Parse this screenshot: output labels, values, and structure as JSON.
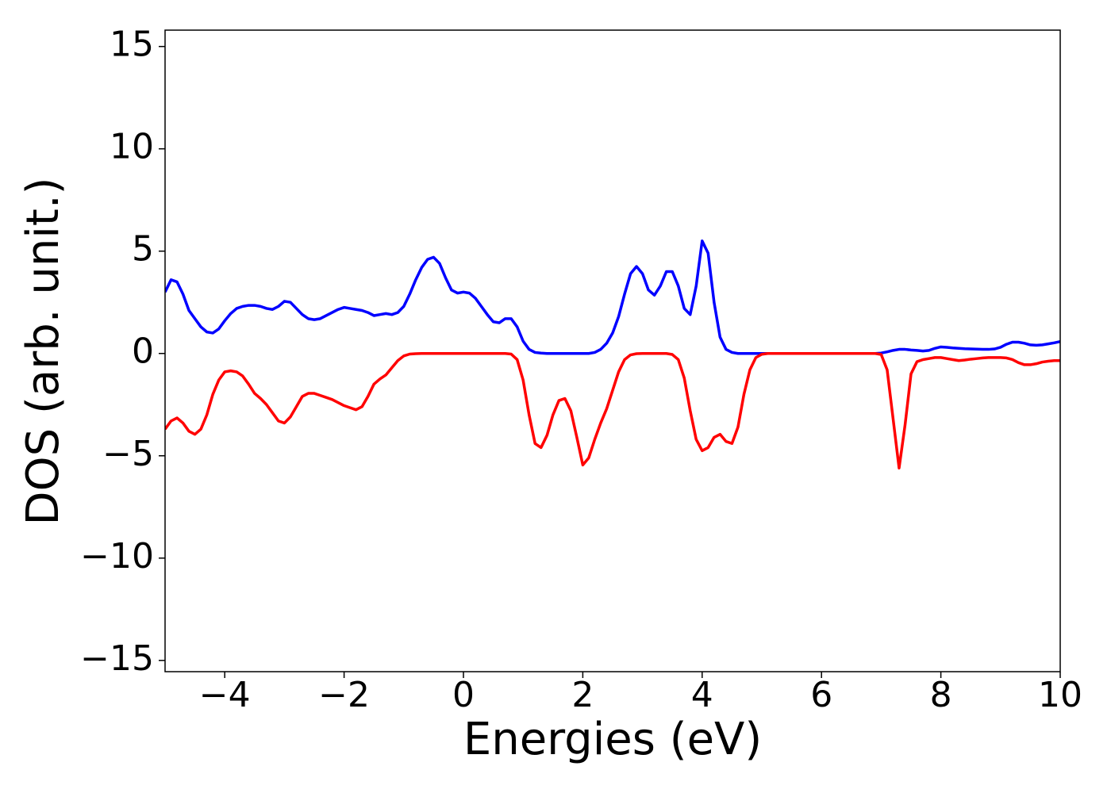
{
  "chart_data": {
    "type": "line",
    "xlabel": "Energies (eV)",
    "ylabel": "DOS (arb. unit.)",
    "xlim": [
      -5,
      10
    ],
    "ylim": [
      -15.55,
      15.8
    ],
    "xticks": [
      {
        "value": -4,
        "label": "−4"
      },
      {
        "value": -2,
        "label": "−2"
      },
      0,
      2,
      4,
      6,
      8,
      10
    ],
    "yticks": [
      {
        "value": -15,
        "label": "−15"
      },
      {
        "value": -10,
        "label": "−10"
      },
      {
        "value": -5,
        "label": "−5"
      },
      0,
      5,
      10,
      15
    ],
    "grid": false,
    "x": [
      -5.0,
      -4.9,
      -4.8,
      -4.7,
      -4.6,
      -4.5,
      -4.4,
      -4.3,
      -4.2,
      -4.1,
      -4.0,
      -3.9,
      -3.8,
      -3.7,
      -3.6,
      -3.5,
      -3.4,
      -3.3,
      -3.2,
      -3.1,
      -3.0,
      -2.9,
      -2.8,
      -2.7,
      -2.6,
      -2.5,
      -2.4,
      -2.3,
      -2.2,
      -2.1,
      -2.0,
      -1.9,
      -1.8,
      -1.7,
      -1.6,
      -1.5,
      -1.4,
      -1.3,
      -1.2,
      -1.1,
      -1.0,
      -0.9,
      -0.8,
      -0.7,
      -0.6,
      -0.5,
      -0.4,
      -0.3,
      -0.2,
      -0.1,
      0.0,
      0.1,
      0.2,
      0.3,
      0.4,
      0.5,
      0.6,
      0.7,
      0.8,
      0.9,
      1.0,
      1.1,
      1.2,
      1.3,
      1.4,
      1.5,
      1.6,
      1.7,
      1.8,
      1.9,
      2.0,
      2.1,
      2.2,
      2.3,
      2.4,
      2.5,
      2.6,
      2.7,
      2.8,
      2.9,
      3.0,
      3.1,
      3.2,
      3.3,
      3.4,
      3.5,
      3.6,
      3.7,
      3.8,
      3.9,
      4.0,
      4.1,
      4.2,
      4.3,
      4.4,
      4.5,
      4.6,
      4.7,
      4.8,
      4.9,
      5.0,
      5.1,
      5.2,
      5.3,
      5.4,
      5.5,
      5.6,
      5.7,
      5.8,
      5.9,
      6.0,
      6.1,
      6.2,
      6.3,
      6.4,
      6.5,
      6.6,
      6.7,
      6.8,
      6.9,
      7.0,
      7.1,
      7.2,
      7.3,
      7.4,
      7.5,
      7.6,
      7.7,
      7.8,
      7.9,
      8.0,
      8.1,
      8.2,
      8.3,
      8.4,
      8.5,
      8.6,
      8.7,
      8.8,
      8.9,
      9.0,
      9.1,
      9.2,
      9.3,
      9.4,
      9.5,
      9.6,
      9.7,
      9.8,
      9.9,
      10.0
    ],
    "series": [
      {
        "color": "#0000ff",
        "values": [
          3.0,
          3.6,
          3.5,
          2.9,
          2.1,
          1.7,
          1.3,
          1.05,
          1.0,
          1.2,
          1.6,
          1.95,
          2.2,
          2.3,
          2.35,
          2.35,
          2.3,
          2.2,
          2.15,
          2.3,
          2.55,
          2.5,
          2.2,
          1.9,
          1.7,
          1.65,
          1.7,
          1.85,
          2.0,
          2.15,
          2.25,
          2.2,
          2.15,
          2.1,
          2.0,
          1.85,
          1.9,
          1.95,
          1.9,
          2.0,
          2.3,
          2.9,
          3.6,
          4.2,
          4.6,
          4.7,
          4.4,
          3.7,
          3.1,
          2.95,
          3.0,
          2.95,
          2.7,
          2.3,
          1.9,
          1.55,
          1.5,
          1.7,
          1.7,
          1.3,
          0.6,
          0.2,
          0.05,
          0.02,
          0,
          0,
          0,
          0,
          0,
          0,
          0,
          0,
          0.05,
          0.2,
          0.5,
          1.0,
          1.8,
          2.9,
          3.9,
          4.25,
          3.9,
          3.1,
          2.85,
          3.3,
          4.0,
          4.0,
          3.3,
          2.2,
          1.9,
          3.3,
          5.5,
          4.9,
          2.5,
          0.8,
          0.2,
          0.05,
          0,
          0,
          0,
          0,
          0,
          0,
          0,
          0,
          0,
          0,
          0,
          0,
          0,
          0,
          0,
          0,
          0,
          0,
          0,
          0,
          0,
          0,
          0,
          0,
          0.02,
          0.08,
          0.15,
          0.2,
          0.2,
          0.17,
          0.15,
          0.12,
          0.15,
          0.25,
          0.32,
          0.3,
          0.27,
          0.25,
          0.23,
          0.22,
          0.21,
          0.2,
          0.2,
          0.22,
          0.3,
          0.45,
          0.55,
          0.55,
          0.5,
          0.42,
          0.4,
          0.42,
          0.47,
          0.52,
          0.58
        ]
      },
      {
        "color": "#ff0000",
        "values": [
          -3.7,
          -3.3,
          -3.15,
          -3.4,
          -3.8,
          -3.95,
          -3.7,
          -3.0,
          -2.0,
          -1.3,
          -0.9,
          -0.85,
          -0.9,
          -1.1,
          -1.5,
          -1.95,
          -2.2,
          -2.5,
          -2.9,
          -3.3,
          -3.4,
          -3.1,
          -2.6,
          -2.1,
          -1.95,
          -1.95,
          -2.05,
          -2.15,
          -2.25,
          -2.4,
          -2.55,
          -2.65,
          -2.75,
          -2.6,
          -2.1,
          -1.5,
          -1.25,
          -1.05,
          -0.7,
          -0.35,
          -0.12,
          -0.03,
          -0.01,
          0,
          0,
          0,
          0,
          0,
          0,
          0,
          0,
          0,
          0,
          0,
          0,
          0,
          0,
          0,
          -0.03,
          -0.3,
          -1.3,
          -3.0,
          -4.4,
          -4.6,
          -4.0,
          -3.0,
          -2.3,
          -2.2,
          -2.8,
          -4.1,
          -5.45,
          -5.1,
          -4.2,
          -3.4,
          -2.7,
          -1.8,
          -0.9,
          -0.3,
          -0.07,
          -0.01,
          0,
          0,
          0,
          0,
          0,
          -0.05,
          -0.3,
          -1.2,
          -2.8,
          -4.2,
          -4.75,
          -4.6,
          -4.1,
          -3.95,
          -4.3,
          -4.4,
          -3.6,
          -2.0,
          -0.8,
          -0.2,
          -0.04,
          0,
          0,
          0,
          0,
          0,
          0,
          0,
          0,
          0,
          0,
          0,
          0,
          0,
          0,
          0,
          0,
          0,
          0,
          0,
          -0.05,
          -0.8,
          -3.2,
          -5.6,
          -3.5,
          -1.0,
          -0.4,
          -0.3,
          -0.25,
          -0.2,
          -0.2,
          -0.25,
          -0.3,
          -0.35,
          -0.32,
          -0.28,
          -0.25,
          -0.22,
          -0.2,
          -0.2,
          -0.2,
          -0.22,
          -0.3,
          -0.45,
          -0.55,
          -0.55,
          -0.5,
          -0.42,
          -0.38,
          -0.35,
          -0.35
        ]
      }
    ]
  }
}
